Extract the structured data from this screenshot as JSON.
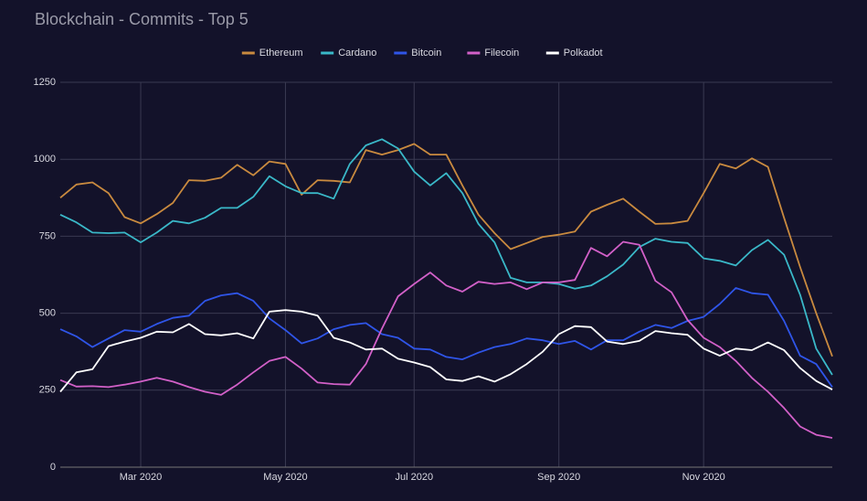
{
  "chart_data": {
    "type": "line",
    "title": "Blockchain - Commits - Top 5",
    "categories": [
      null,
      null,
      null,
      null,
      null,
      "Mar 2020",
      null,
      null,
      null,
      null,
      null,
      null,
      null,
      null,
      "May 2020",
      null,
      null,
      null,
      null,
      null,
      null,
      null,
      "Jul 2020",
      null,
      null,
      null,
      null,
      null,
      null,
      null,
      null,
      "Sep 2020",
      null,
      null,
      null,
      null,
      null,
      null,
      null,
      null,
      "Nov 2020",
      null,
      null,
      null,
      null,
      null,
      null,
      null,
      null
    ],
    "series": [
      {
        "name": "Ethereum",
        "color": "#c98a3f",
        "values": [
          875,
          918,
          925,
          890,
          812,
          792,
          822,
          858,
          932,
          930,
          940,
          982,
          948,
          993,
          985,
          885,
          932,
          930,
          925,
          1030,
          1015,
          1030,
          1050,
          1015,
          1015,
          915,
          820,
          760,
          708,
          728,
          748,
          755,
          765,
          830,
          852,
          872,
          830,
          790,
          792,
          800,
          890,
          985,
          970,
          1003,
          975,
          810,
          650,
          500,
          360
        ]
      },
      {
        "name": "Cardano",
        "color": "#3ab8c8",
        "values": [
          820,
          795,
          762,
          760,
          762,
          730,
          762,
          800,
          792,
          810,
          842,
          842,
          878,
          945,
          912,
          890,
          890,
          872,
          985,
          1045,
          1065,
          1035,
          960,
          915,
          955,
          890,
          790,
          730,
          615,
          600,
          600,
          595,
          580,
          590,
          620,
          658,
          715,
          742,
          732,
          728,
          678,
          670,
          655,
          705,
          738,
          690,
          560,
          385,
          300
        ]
      },
      {
        "name": "Bitcoin",
        "color": "#2f55e8",
        "values": [
          448,
          425,
          390,
          418,
          445,
          440,
          465,
          485,
          492,
          540,
          558,
          565,
          540,
          483,
          445,
          402,
          418,
          448,
          462,
          468,
          432,
          420,
          385,
          382,
          358,
          350,
          372,
          390,
          400,
          418,
          412,
          400,
          410,
          382,
          412,
          412,
          440,
          462,
          452,
          475,
          488,
          530,
          582,
          565,
          560,
          475,
          362,
          335,
          260
        ]
      },
      {
        "name": "Filecoin",
        "color": "#d260c8",
        "values": [
          283,
          262,
          263,
          260,
          268,
          278,
          290,
          278,
          260,
          245,
          235,
          268,
          308,
          345,
          358,
          320,
          275,
          270,
          268,
          335,
          450,
          555,
          595,
          632,
          590,
          570,
          602,
          595,
          600,
          578,
          600,
          600,
          608,
          712,
          685,
          732,
          722,
          605,
          568,
          478,
          420,
          390,
          345,
          290,
          245,
          192,
          132,
          105,
          95
        ]
      },
      {
        "name": "Polkadot",
        "color": "#ffffff",
        "values": [
          245,
          308,
          318,
          393,
          408,
          420,
          440,
          438,
          465,
          432,
          428,
          435,
          418,
          505,
          510,
          505,
          492,
          420,
          405,
          382,
          385,
          352,
          340,
          325,
          285,
          280,
          295,
          278,
          302,
          335,
          375,
          432,
          458,
          455,
          408,
          400,
          410,
          442,
          435,
          430,
          385,
          362,
          385,
          380,
          405,
          380,
          322,
          280,
          252
        ]
      }
    ],
    "ylim": [
      0,
      1250
    ],
    "yticks": [
      0,
      250,
      500,
      750,
      1000,
      1250
    ],
    "grid": true,
    "legend": "top"
  }
}
